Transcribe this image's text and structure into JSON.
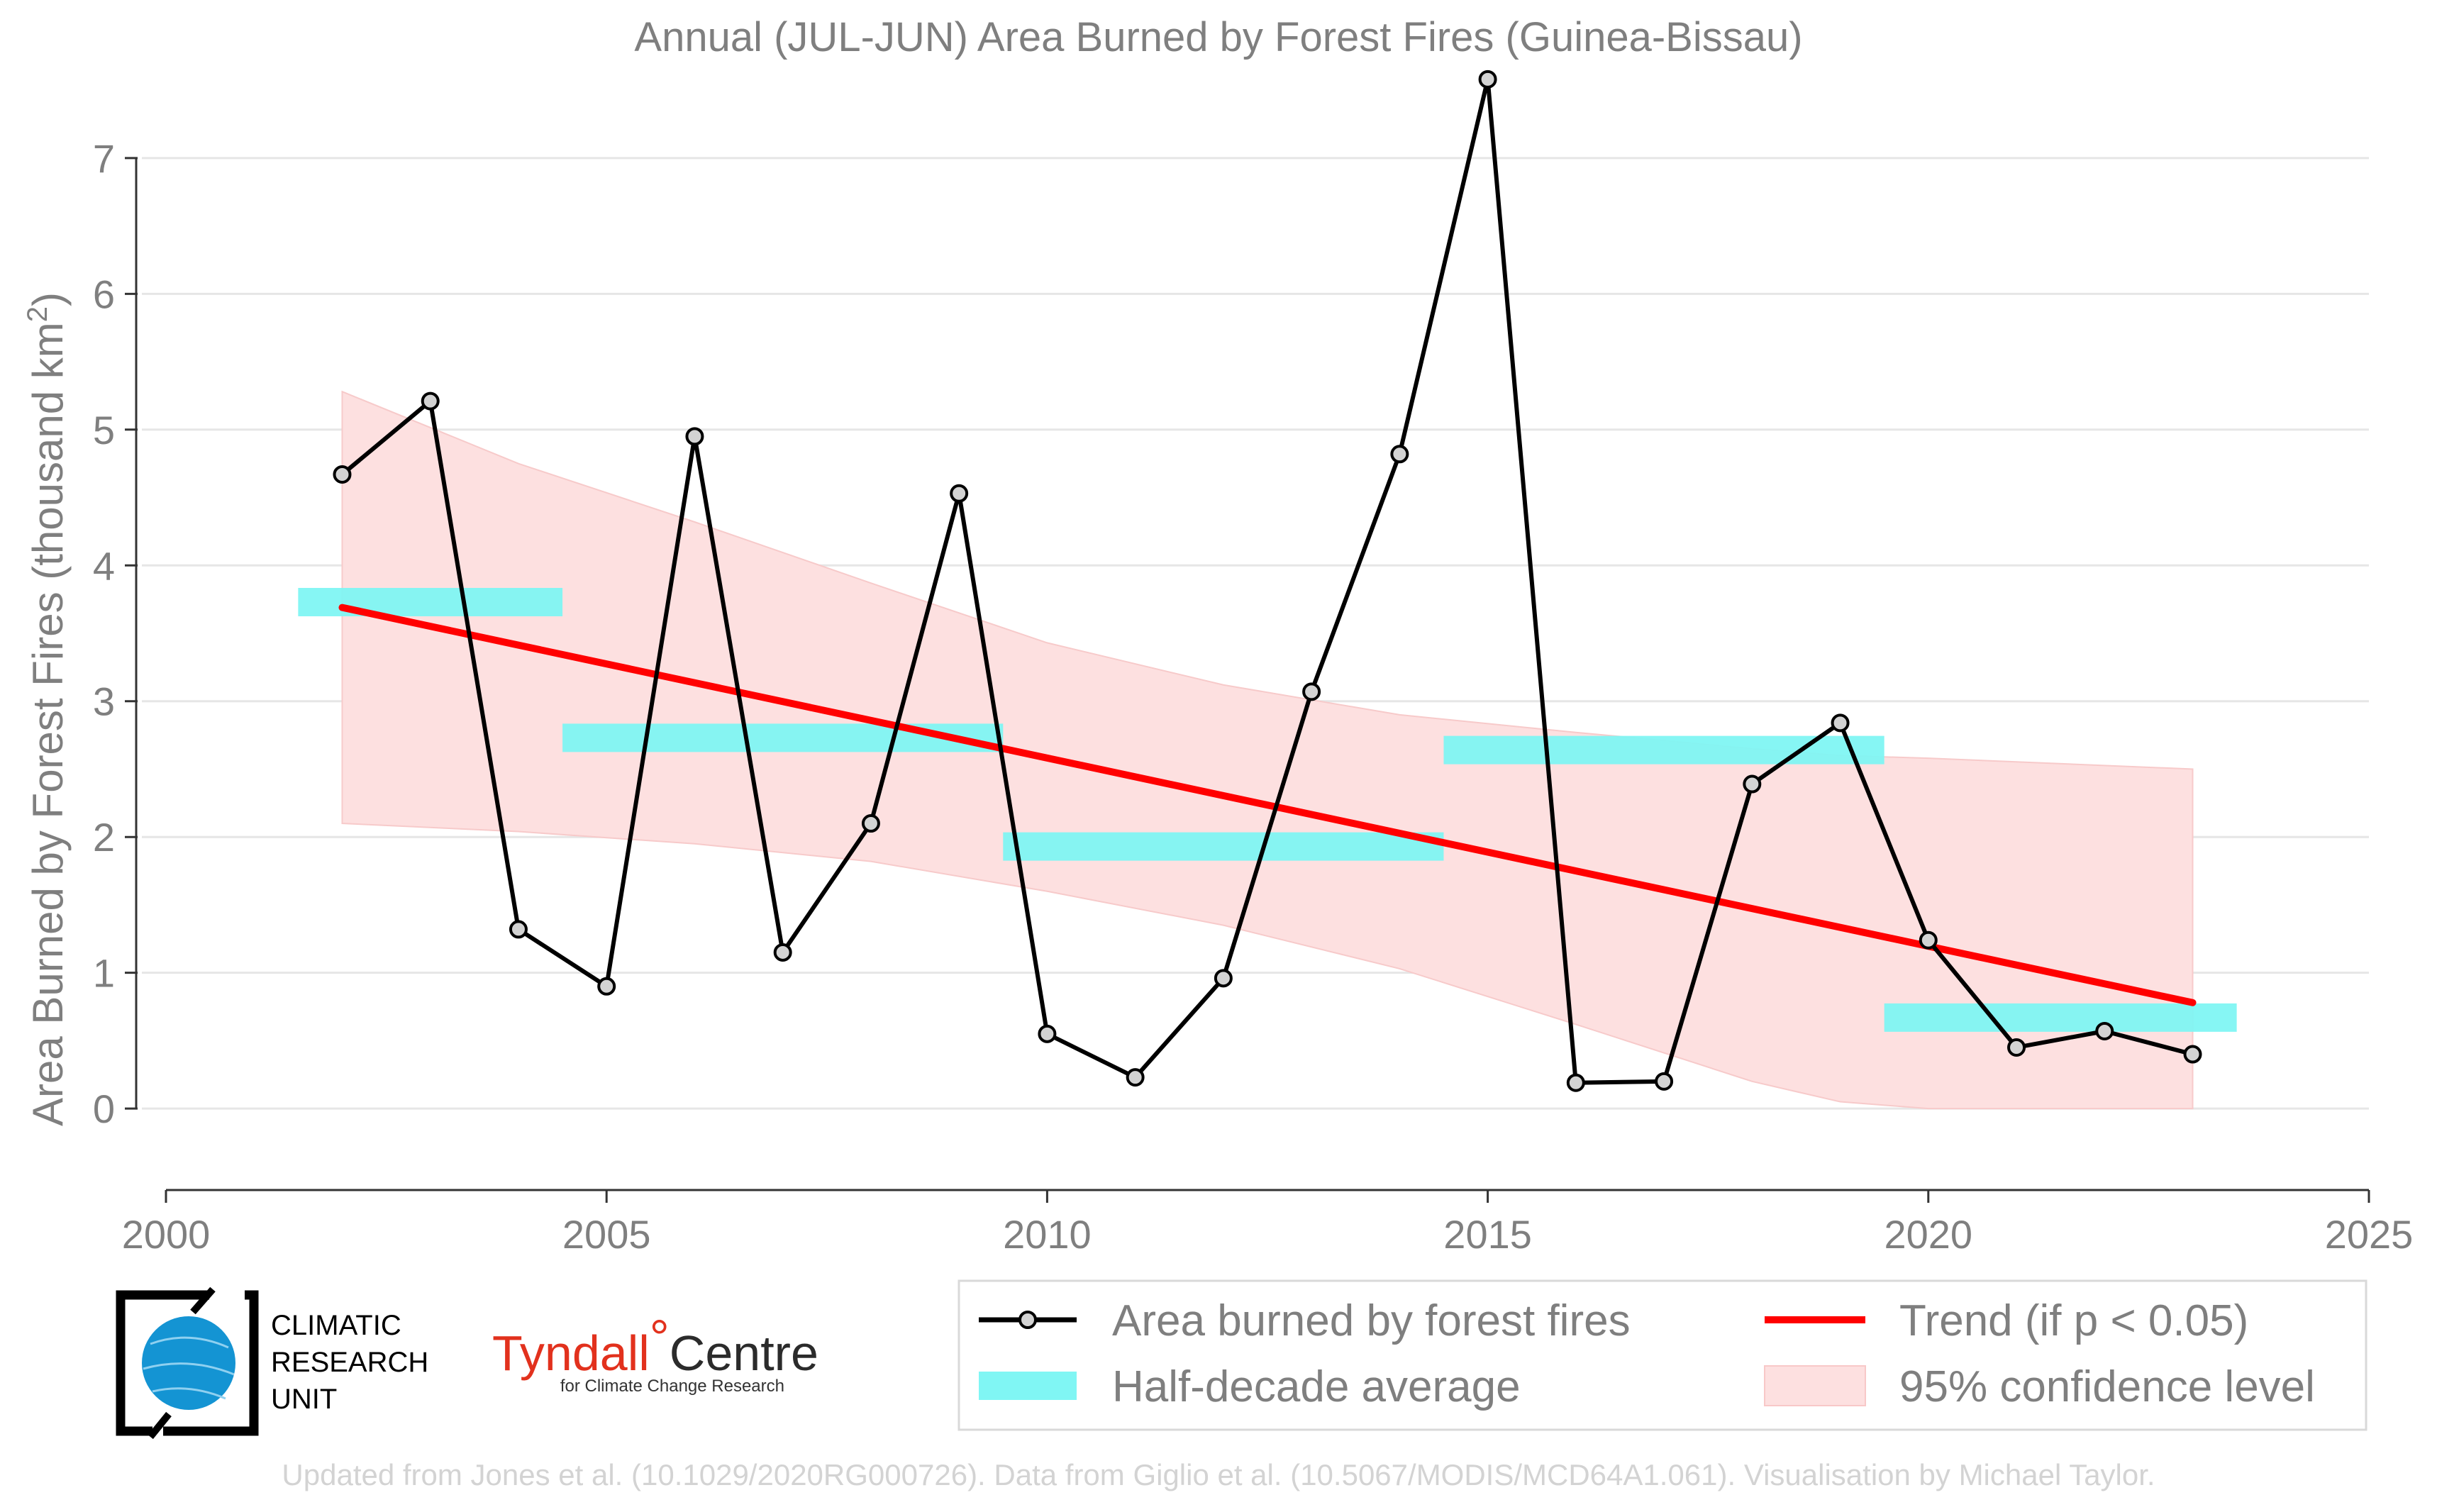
{
  "chart_data": {
    "type": "line",
    "title": "Annual (JUL-JUN) Area Burned by Forest Fires (Guinea-Bissau)",
    "ylabel": "Area Burned by Forest Fires (thousand km",
    "ylabel_sup": "2",
    "ylabel_end": ")",
    "xlabel": "",
    "xlim": [
      2000,
      2025
    ],
    "ylim": [
      -0.6,
      7.6
    ],
    "x_ticks": [
      2000,
      2005,
      2010,
      2015,
      2020,
      2025
    ],
    "y_ticks": [
      0,
      1,
      2,
      3,
      4,
      5,
      6,
      7
    ],
    "grid": "horizontal",
    "series": [
      {
        "name": "Area burned by forest fires",
        "type": "line",
        "color": "#000000",
        "x": [
          2002,
          2003,
          2004,
          2005,
          2006,
          2007,
          2008,
          2009,
          2010,
          2011,
          2012,
          2013,
          2014,
          2015,
          2016,
          2017,
          2018,
          2019,
          2020,
          2021,
          2022,
          2023
        ],
        "y": [
          4.67,
          5.21,
          1.32,
          0.9,
          4.95,
          1.15,
          2.1,
          4.53,
          0.55,
          0.23,
          0.96,
          3.07,
          4.82,
          7.58,
          0.19,
          0.2,
          2.39,
          2.84,
          1.24,
          0.45,
          0.57,
          0.4
        ]
      },
      {
        "name": "Half-decade average",
        "type": "segments",
        "color": "#80f6f4",
        "segments": [
          {
            "x0": 2001.5,
            "x1": 2004.5,
            "y": 3.73
          },
          {
            "x0": 2004.5,
            "x1": 2009.5,
            "y": 2.73
          },
          {
            "x0": 2009.5,
            "x1": 2014.5,
            "y": 1.93
          },
          {
            "x0": 2014.5,
            "x1": 2019.5,
            "y": 2.64
          },
          {
            "x0": 2019.5,
            "x1": 2023.5,
            "y": 0.67
          }
        ]
      },
      {
        "name": "Trend (if p < 0.05)",
        "type": "line",
        "color": "#ff0000",
        "x": [
          2002,
          2023
        ],
        "y": [
          3.69,
          0.78
        ]
      },
      {
        "name": "95% confidence level",
        "type": "band",
        "color": "#fde0e0",
        "x": [
          2002,
          2004,
          2006,
          2008,
          2010,
          2012,
          2014,
          2016,
          2018,
          2019,
          2020,
          2023
        ],
        "upper": [
          5.28,
          4.75,
          4.32,
          3.87,
          3.43,
          3.12,
          2.9,
          2.77,
          2.65,
          2.6,
          2.58,
          2.5
        ],
        "lower": [
          2.1,
          2.04,
          1.95,
          1.82,
          1.6,
          1.35,
          1.03,
          0.62,
          0.2,
          0.05,
          0.0,
          0.0
        ]
      }
    ],
    "legend": {
      "placement": "bottom-right",
      "entries": [
        "Area burned by forest fires",
        "Trend (if p < 0.05)",
        "Half-decade average",
        "95% confidence level"
      ]
    }
  },
  "logos": {
    "cru_line1": "CLIMATIC",
    "cru_line2": "RESEARCH",
    "cru_line3": "UNIT",
    "tyndall_main": "Tyndall",
    "tyndall_degree": "°",
    "tyndall_centre": "Centre",
    "tyndall_sub": "for Climate Change Research"
  },
  "footer": "Updated from Jones et al. (10.1029/2020RG000726). Data from Giglio et al. (10.5067/MODIS/MCD64A1.061). Visualisation by Michael Taylor."
}
